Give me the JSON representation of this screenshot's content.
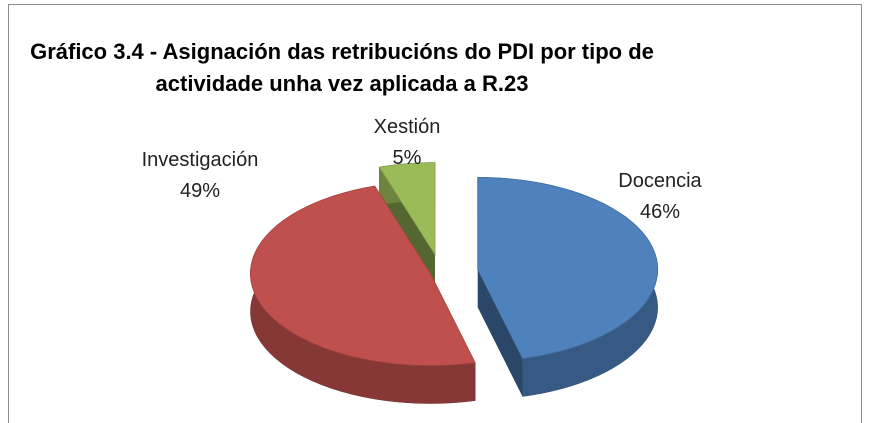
{
  "chart_data": {
    "type": "pie3d",
    "title": "Gráfico 3.4 - Asignación das retribucións do PDI por tipo de actividade unha vez aplicada a R.23",
    "categories": [
      "Docencia",
      "Investigación",
      "Xestión"
    ],
    "values": [
      46,
      49,
      5
    ],
    "value_labels": [
      "46%",
      "49%",
      "5%"
    ],
    "colors": [
      "#4f81bd",
      "#c0504d",
      "#9bbb59"
    ]
  }
}
